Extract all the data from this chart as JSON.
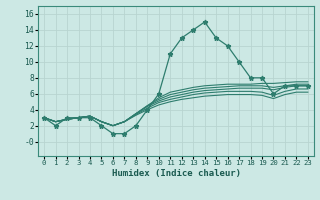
{
  "xlabel": "Humidex (Indice chaleur)",
  "line_color": "#2e7d6e",
  "bg_color": "#cce8e4",
  "grid_color": "#b8d4d0",
  "xlim": [
    -0.5,
    23.5
  ],
  "ylim": [
    -1.8,
    17.0
  ],
  "yticks": [
    0,
    2,
    4,
    6,
    8,
    10,
    12,
    14,
    16
  ],
  "ytick_labels": [
    "-0",
    "2",
    "4",
    "6",
    "8",
    "10",
    "12",
    "14",
    "16"
  ],
  "xticks": [
    0,
    1,
    2,
    3,
    4,
    5,
    6,
    7,
    8,
    9,
    10,
    11,
    12,
    13,
    14,
    15,
    16,
    17,
    18,
    19,
    20,
    21,
    22,
    23
  ],
  "main_series": [
    3,
    2,
    3,
    3,
    3,
    2,
    1,
    1,
    2,
    4,
    6,
    11,
    13,
    14,
    15,
    13,
    12,
    10,
    8,
    8,
    6,
    7,
    7,
    7
  ],
  "trend_lines": [
    [
      3.0,
      2.5,
      2.8,
      3.0,
      3.2,
      2.5,
      2.0,
      2.5,
      3.5,
      4.5,
      5.5,
      6.2,
      6.5,
      6.8,
      7.0,
      7.1,
      7.2,
      7.2,
      7.2,
      7.3,
      7.3,
      7.4,
      7.5,
      7.5
    ],
    [
      3.0,
      2.5,
      2.8,
      3.0,
      3.2,
      2.5,
      2.0,
      2.5,
      3.5,
      4.5,
      5.3,
      5.9,
      6.2,
      6.5,
      6.7,
      6.8,
      6.9,
      7.0,
      7.0,
      7.0,
      6.8,
      7.0,
      7.2,
      7.2
    ],
    [
      3.0,
      2.5,
      2.8,
      3.0,
      3.2,
      2.5,
      2.0,
      2.5,
      3.5,
      4.4,
      5.1,
      5.6,
      5.9,
      6.2,
      6.4,
      6.5,
      6.6,
      6.7,
      6.7,
      6.7,
      6.5,
      6.8,
      7.0,
      7.0
    ],
    [
      3.0,
      2.5,
      2.8,
      3.0,
      3.2,
      2.5,
      2.0,
      2.5,
      3.4,
      4.2,
      4.9,
      5.3,
      5.6,
      5.9,
      6.1,
      6.2,
      6.3,
      6.3,
      6.3,
      6.2,
      5.8,
      6.3,
      6.6,
      6.6
    ],
    [
      3.0,
      2.5,
      2.8,
      3.0,
      3.2,
      2.5,
      2.0,
      2.5,
      3.3,
      4.0,
      4.6,
      5.0,
      5.3,
      5.5,
      5.7,
      5.8,
      5.9,
      5.9,
      5.9,
      5.8,
      5.4,
      5.9,
      6.2,
      6.2
    ]
  ]
}
